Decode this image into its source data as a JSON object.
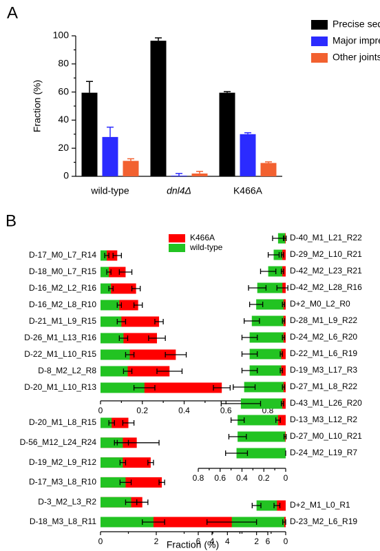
{
  "chart_data": [
    {
      "type": "bar",
      "panel_label": "A",
      "ylabel": "Fraction (%)",
      "categories": [
        "wild-type",
        "dnl4Δ",
        "K466A"
      ],
      "series": [
        {
          "name": "Precise sequence",
          "color": "#000000",
          "values": [
            59.5,
            96.5,
            59.5
          ],
          "errors": [
            8,
            2,
            0.8
          ]
        },
        {
          "name": "Major imprecise joints",
          "color": "#2b2bff",
          "values": [
            28,
            0.5,
            30
          ],
          "errors": [
            7,
            1.5,
            1
          ]
        },
        {
          "name": "Other joints",
          "color": "#f26130",
          "values": [
            11,
            2,
            9.5
          ],
          "errors": [
            1.5,
            1.5,
            0.8
          ]
        }
      ],
      "ylim": [
        0,
        100
      ],
      "yticks": [
        0,
        20,
        40,
        60,
        80,
        100
      ],
      "legend": "top-right"
    },
    {
      "type": "barh",
      "panel_label": "B",
      "legend": "top-right",
      "categories": [
        "D-17_M0_L7_R14",
        "D-18_M0_L7_R15",
        "D-16_M2_L2_R16",
        "D-16_M2_L8_R10",
        "D-21_M1_L9_R15",
        "D-26_M1_L13_R16",
        "D-22_M1_L10_R15",
        "D-8_M2_L2_R8",
        "D-20_M1_L10_R13"
      ],
      "series": [
        {
          "name": "K466A",
          "color": "#ff0000",
          "values": [
            0.08,
            0.12,
            0.17,
            0.18,
            0.28,
            0.27,
            0.36,
            0.33,
            0.58
          ],
          "errors": [
            0.02,
            0.03,
            0.02,
            0.02,
            0.02,
            0.04,
            0.05,
            0.06,
            0.04
          ]
        },
        {
          "name": "wild-type",
          "color": "#22c322",
          "values": [
            0.03,
            0.04,
            0.05,
            0.09,
            0.1,
            0.11,
            0.14,
            0.13,
            0.21
          ],
          "errors": [
            0.01,
            0.01,
            0.01,
            0.01,
            0.02,
            0.02,
            0.02,
            0.02,
            0.05
          ]
        }
      ],
      "xlim": [
        0,
        0.8
      ],
      "xticks": [
        0,
        0.2,
        0.4,
        0.6,
        0.8
      ]
    },
    {
      "type": "barh",
      "xlabel": "Fraction (%)",
      "categories": [
        "D-20_M1_L8_R15",
        "D-56_M12_L24_R24",
        "D-19_M2_L9_R12",
        "D-17_M3_L8_R10",
        "D-3_M2_L3_R2",
        "D-18_M3_L8_R11"
      ],
      "series": [
        {
          "name": "K466A",
          "color": "#ff0000",
          "values": [
            1.0,
            1.3,
            1.8,
            2.2,
            1.5,
            5.3
          ],
          "errors": [
            0.2,
            0.8,
            0.1,
            0.1,
            0.2,
            0.2
          ]
        },
        {
          "name": "wild-type",
          "color": "#22c322",
          "values": [
            0.4,
            0.8,
            0.8,
            0.9,
            1.1,
            1.9
          ],
          "errors": [
            0.1,
            0.2,
            0.1,
            0.2,
            0.2,
            0.4
          ]
        }
      ],
      "xlim": [
        0,
        6
      ],
      "xticks": [
        0,
        2,
        4,
        6
      ]
    },
    {
      "type": "barh",
      "categories": [
        "D-40_M1_L21_R22",
        "D-29_M2_L10_R21",
        "D-42_M2_L23_R21",
        "D-42_M2_L28_R16",
        "D+2_M0_L2_R0",
        "D-28_M1_L9_R22",
        "D-24_M2_L6_R20",
        "D-22_M1_L6_R19",
        "D-19_M3_L17_R3",
        "D-27_M1_L8_R22",
        "D-43_M1_L26_R20",
        "D-13_M3_L12_R2",
        "D-27_M0_L10_R21",
        "D-24_M2_L19_R7"
      ],
      "series": [
        {
          "name": "K466A",
          "color": "#ff0000",
          "values": [
            0.005,
            0.03,
            0.03,
            0.03,
            0.02,
            0.02,
            0.02,
            0.04,
            0.04,
            0.02,
            0.03,
            0.07,
            0.005,
            0
          ],
          "errors": [
            0.01,
            0.01,
            0.01,
            0.05,
            0.01,
            0.01,
            0.01,
            0.01,
            0.01,
            0.01,
            0.01,
            0.02,
            0.01,
            0
          ]
        },
        {
          "name": "wild-type",
          "color": "#22c322",
          "values": [
            0.07,
            0.11,
            0.16,
            0.26,
            0.27,
            0.31,
            0.33,
            0.33,
            0.33,
            0.38,
            0.41,
            0.44,
            0.44,
            0.45
          ],
          "errors": [
            0.05,
            0.05,
            0.07,
            0.08,
            0.06,
            0.07,
            0.07,
            0.07,
            0.07,
            0.1,
            0.18,
            0.06,
            0.08,
            0.1
          ]
        }
      ],
      "xlim": [
        0.8,
        0
      ],
      "xticks": [
        0.8,
        0.6,
        0.4,
        0.2,
        0
      ]
    },
    {
      "type": "barh",
      "categories": [
        "D+2_M1_L0_R1",
        "D-23_M2_L6_R19"
      ],
      "series": [
        {
          "name": "K466A",
          "color": "#ff0000",
          "values": [
            0.6,
            0.1
          ],
          "errors": [
            0.2,
            0.1
          ]
        },
        {
          "name": "wild-type",
          "color": "#22c322",
          "values": [
            2.0,
            3.7
          ],
          "errors": [
            0.3,
            1.7
          ]
        }
      ],
      "xlim": [
        6,
        0
      ],
      "xticks": [
        6,
        4,
        2,
        0
      ]
    }
  ]
}
